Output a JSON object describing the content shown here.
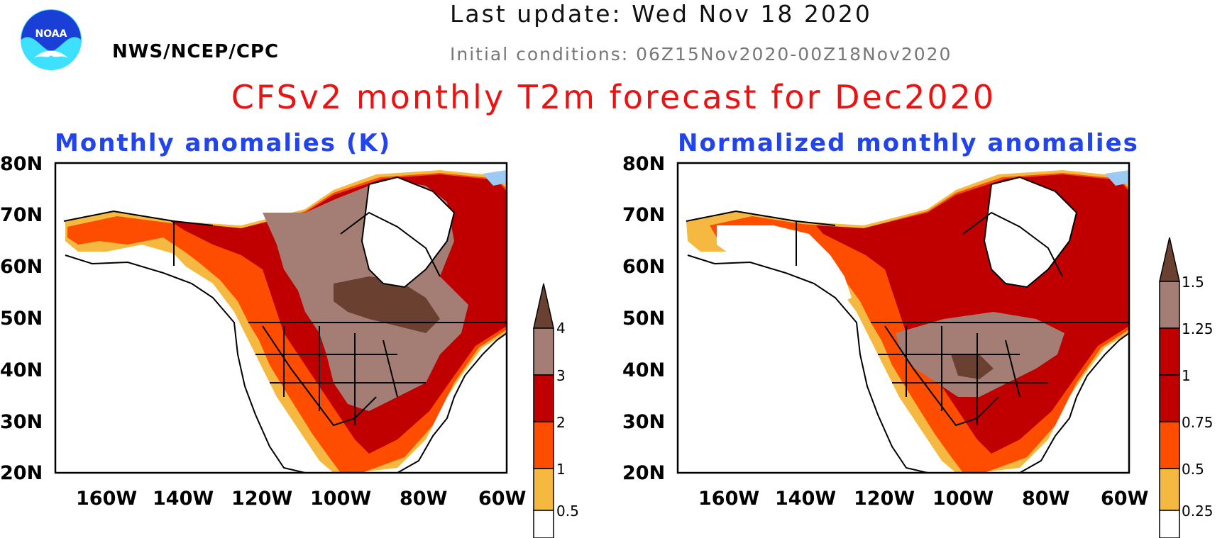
{
  "header": {
    "logo_text": "NOAA",
    "agency": "NWS/NCEP/CPC",
    "last_update": "Last update: Wed Nov 18 2020",
    "initial_conditions": "Initial conditions: 06Z15Nov2020-00Z18Nov2020",
    "main_title": "CFSv2 monthly T2m forecast for Dec2020"
  },
  "axes": {
    "lat_labels": [
      "80N",
      "70N",
      "60N",
      "50N",
      "40N",
      "30N",
      "20N"
    ],
    "lon_labels": [
      "160W",
      "140W",
      "120W",
      "100W",
      "80W",
      "60W"
    ]
  },
  "colors": {
    "white": "#ffffff",
    "light_orange": "#f5b840",
    "orange": "#ff4d00",
    "dark_red": "#c00000",
    "pinkish_brown": "#a47e74",
    "dark_brown": "#6a4030",
    "light_blue": "#9ccaf5",
    "blue": "#3d8cee"
  },
  "panels": [
    {
      "title": "Monthly anomalies (K)",
      "colorbar": {
        "labels": [
          "0.5",
          "1",
          "2",
          "3",
          "4"
        ],
        "colors": [
          "#ffffff",
          "#f5b840",
          "#ff4d00",
          "#c00000",
          "#a47e74",
          "#6a4030"
        ]
      }
    },
    {
      "title": "Normalized monthly anomalies",
      "colorbar": {
        "labels": [
          "0.25",
          "0.5",
          "0.75",
          "1",
          "1.25",
          "1.5"
        ],
        "colors": [
          "#ffffff",
          "#f5b840",
          "#ff4d00",
          "#c00000",
          "#a47e74",
          "#6a4030"
        ]
      }
    }
  ]
}
